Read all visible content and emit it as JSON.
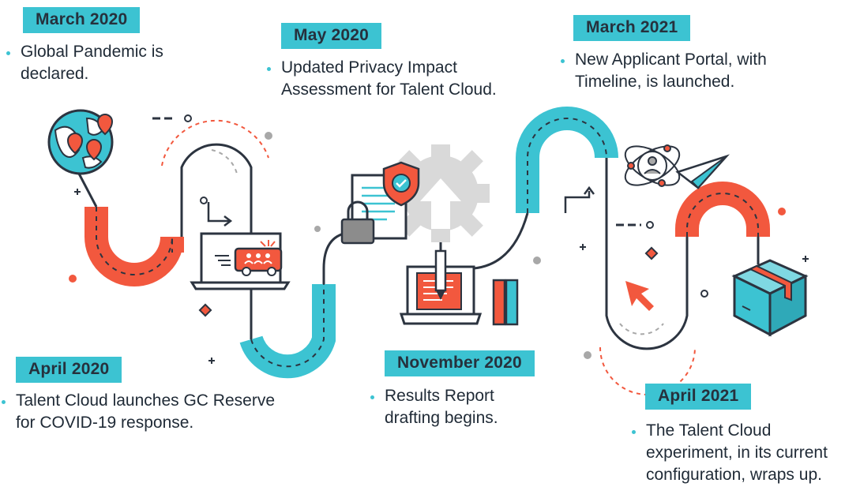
{
  "timeline": {
    "events": [
      {
        "date": "March 2020",
        "description": "Global Pandemic is declared."
      },
      {
        "date": "April 2020",
        "description": "Talent Cloud launches GC Reserve for COVID-19 response."
      },
      {
        "date": "May 2020",
        "description": "Updated Privacy Impact Assessment for Talent Cloud."
      },
      {
        "date": "November 2020",
        "description": "Results Report drafting begins."
      },
      {
        "date": "March 2021",
        "description": "New Applicant Portal, with Timeline, is launched."
      },
      {
        "date": "April 2021",
        "description": "The Talent Cloud experiment, in its current configuration, wraps up."
      }
    ]
  },
  "colors": {
    "teal": "#3cc3d2",
    "coral": "#f2583e",
    "navy": "#2c3440",
    "gray": "#a8a8a8"
  },
  "icons": [
    "globe-pandemic-icon",
    "laptop-van-icon",
    "document-shield-lock-icon",
    "gear-icon",
    "laptop-document-icon",
    "books-icon",
    "atom-person-icon",
    "paper-plane-icon",
    "cursor-arrow-icon",
    "box-icon"
  ]
}
